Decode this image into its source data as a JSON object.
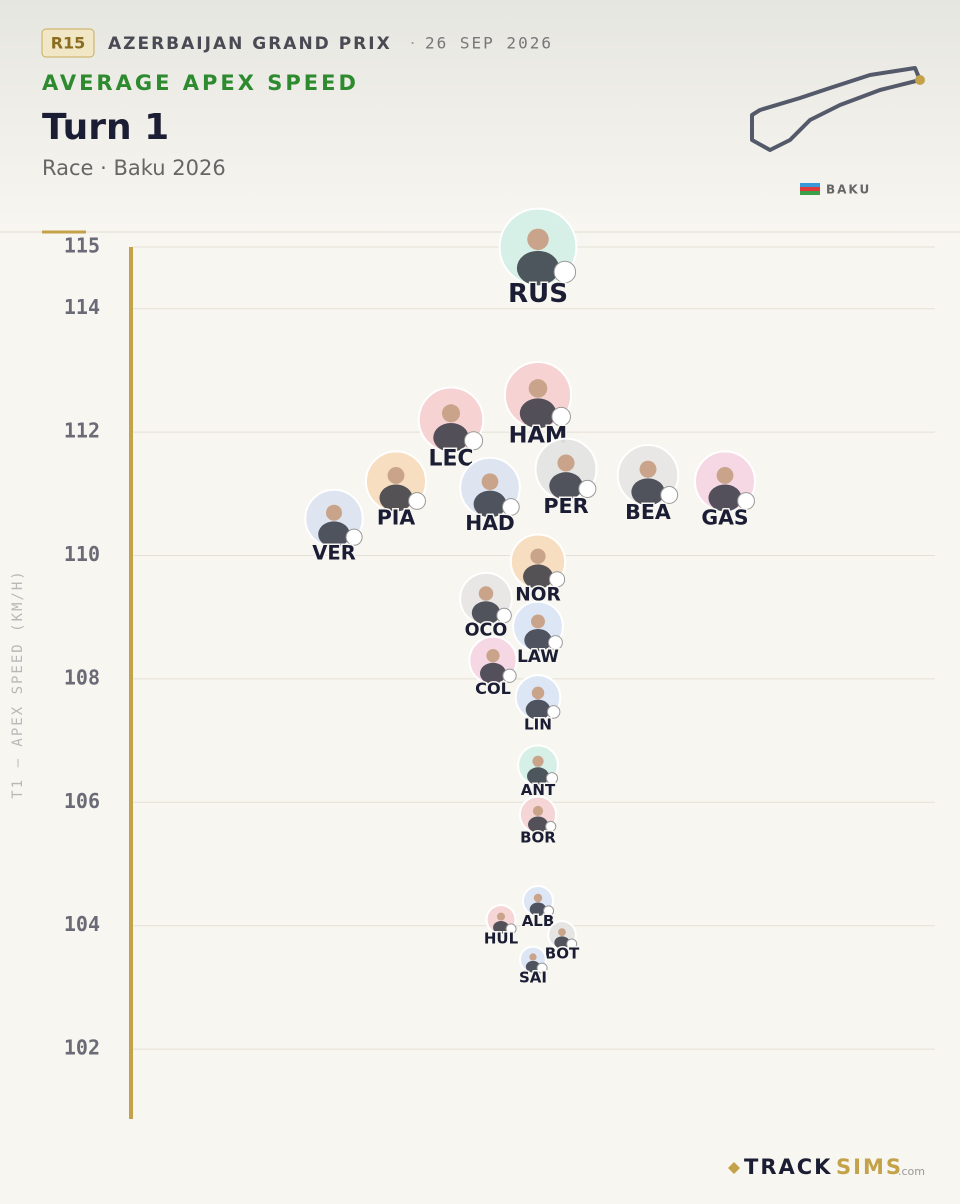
{
  "header": {
    "round": "R15",
    "event": "AZERBAIJAN GRAND PRIX",
    "date": "26 SEP 2026",
    "location": "BAKU"
  },
  "chart_data": {
    "type": "beeswarm",
    "kicker": "AVERAGE APEX SPEED",
    "title": "Turn 1",
    "subtitle": "Race · Baku 2026",
    "y_label": "T1 — APEX SPEED (KM/H)",
    "ylim": [
      101.4,
      115
    ],
    "yticks": [
      102,
      104,
      106,
      108,
      110,
      112,
      114,
      115
    ],
    "grid": true,
    "points": [
      {
        "name": "RUS",
        "value": 115.0,
        "color": "#d4efe7"
      },
      {
        "name": "HAM",
        "value": 112.6,
        "color": "#f6d0d0"
      },
      {
        "name": "LEC",
        "value": 112.2,
        "color": "#f6d0d0"
      },
      {
        "name": "PER",
        "value": 111.4,
        "color": "#e4e4e2"
      },
      {
        "name": "BEA",
        "value": 111.3,
        "color": "#e8e6e4"
      },
      {
        "name": "PIA",
        "value": 111.2,
        "color": "#f8dcbd"
      },
      {
        "name": "GAS",
        "value": 111.2,
        "color": "#f6d6e4"
      },
      {
        "name": "HAD",
        "value": 111.1,
        "color": "#dce3ef"
      },
      {
        "name": "VER",
        "value": 110.6,
        "color": "#dce3ef"
      },
      {
        "name": "NOR",
        "value": 109.9,
        "color": "#f8dcbd"
      },
      {
        "name": "OCO",
        "value": 109.3,
        "color": "#e8e6e4"
      },
      {
        "name": "LAW",
        "value": 108.85,
        "color": "#dbe5f4"
      },
      {
        "name": "COL",
        "value": 108.3,
        "color": "#f6d6e4"
      },
      {
        "name": "LIN",
        "value": 107.7,
        "color": "#dbe5f4"
      },
      {
        "name": "ANT",
        "value": 106.6,
        "color": "#d4efe7"
      },
      {
        "name": "BOR",
        "value": 105.8,
        "color": "#f4d3d3"
      },
      {
        "name": "ALB",
        "value": 104.4,
        "color": "#dbe5f4"
      },
      {
        "name": "HUL",
        "value": 104.1,
        "color": "#f4d3d3"
      },
      {
        "name": "BOT",
        "value": 103.85,
        "color": "#e4e4e2"
      },
      {
        "name": "SAI",
        "value": 103.45,
        "color": "#dbe5f4"
      }
    ]
  },
  "footer": {
    "brand_a": "TRACK",
    "brand_b": "SIMS",
    "brand_c": ".com"
  }
}
